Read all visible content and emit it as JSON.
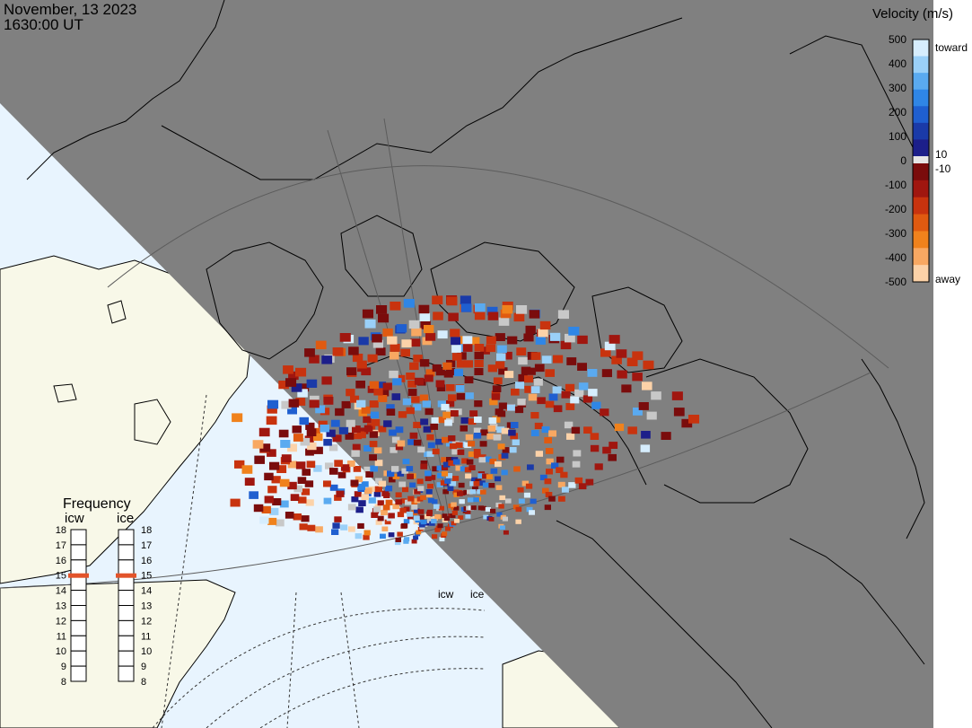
{
  "header": {
    "date": "November, 13 2023",
    "time": "1630:00 UT"
  },
  "colorbar": {
    "title": "Velocity (m/s)",
    "ticks": [
      "500",
      "400",
      "300",
      "200",
      "100",
      "0",
      "-100",
      "-200",
      "-300",
      "-400",
      "-500"
    ],
    "toward_label": "toward",
    "away_label": "away",
    "plus_threshold": "10",
    "minus_threshold": "-10",
    "toward_colors": [
      "#1c1f8a",
      "#1a3aa8",
      "#1f5fd0",
      "#2f86e6",
      "#5aaaf0",
      "#9ad0f8",
      "#d6edfd"
    ],
    "away_colors": [
      "#7a0c0c",
      "#a0160f",
      "#c8330e",
      "#e05a10",
      "#f0821c",
      "#f8a862",
      "#fcd2a8"
    ]
  },
  "frequency": {
    "title": "Frequency",
    "left_label": "icw",
    "right_label": "ice",
    "scale": [
      "18",
      "17",
      "16",
      "15",
      "14",
      "13",
      "12",
      "11",
      "10",
      "9",
      "8"
    ],
    "icw_value": 15,
    "ice_value": 15,
    "marker_color": "#e2532a"
  },
  "radars": [
    {
      "label": "icw"
    },
    {
      "label": "ice"
    }
  ],
  "map": {
    "night_color": "#808080",
    "land_color": "#f8f8e8",
    "ocean_color": "#e8f4fe",
    "coast_color": "#000000",
    "no_velocity_color": "#c8c8c8"
  }
}
